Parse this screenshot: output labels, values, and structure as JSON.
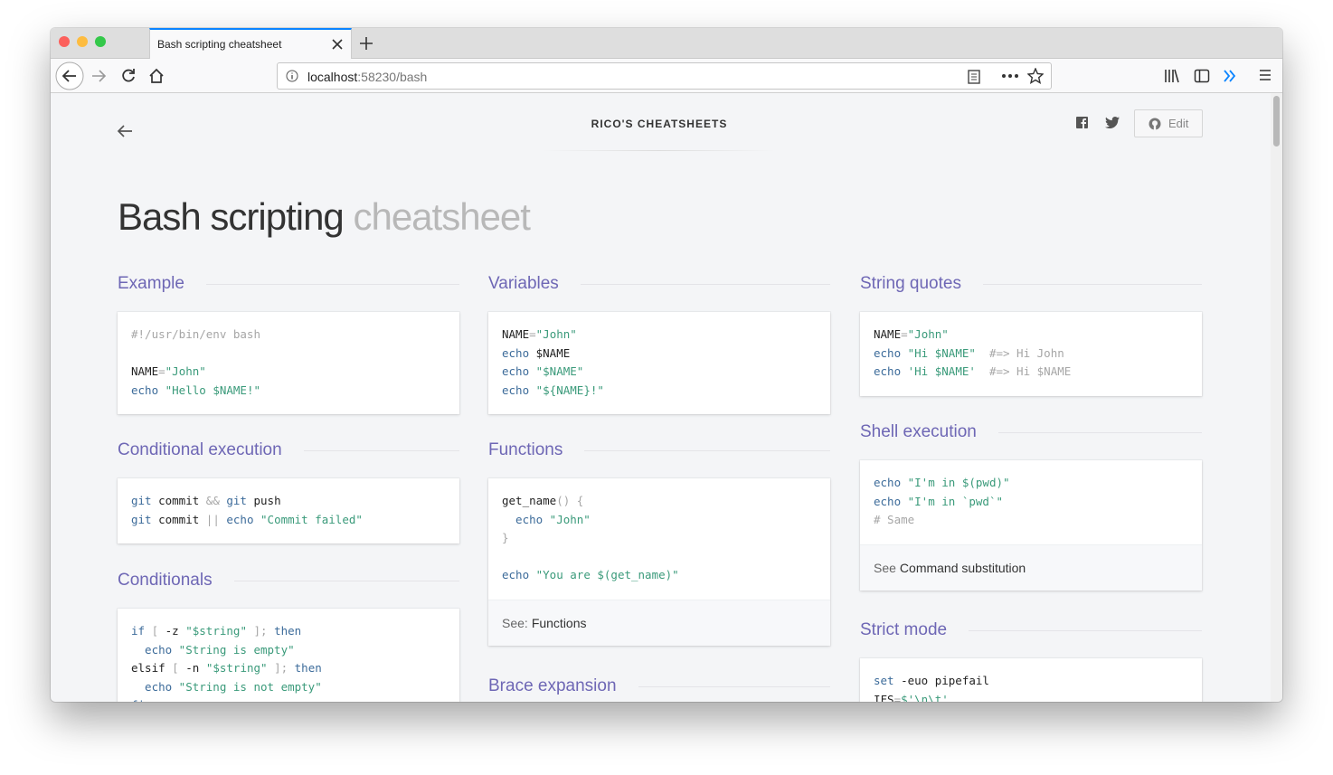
{
  "browser": {
    "tab_title": "Bash scripting cheatsheet",
    "url_host": "localhost",
    "url_path": ":58230/bash"
  },
  "header": {
    "brand": "RICO'S CHEATSHEETS",
    "edit": "Edit"
  },
  "title": {
    "main": "Bash scripting",
    "sub": "cheatsheet"
  },
  "sections": [
    {
      "heading": "Example",
      "code": [
        [
          "#!/usr/bin/env bash"
        ],
        [],
        [
          "NAME",
          "=",
          "\"John\""
        ],
        [
          "echo",
          " \"Hello $NAME!\""
        ]
      ]
    },
    {
      "heading": "Conditional execution",
      "code": [
        [
          "git",
          " commit ",
          "&&",
          " git",
          " push"
        ],
        [
          "git",
          " commit ",
          "||",
          " echo",
          " \"Commit failed\""
        ]
      ]
    },
    {
      "heading": "Conditionals",
      "code": [
        [
          "if",
          " [",
          " -z ",
          "\"$string\"",
          " ];",
          " then"
        ],
        [
          "  echo",
          " \"String is empty\""
        ],
        [
          "elsif",
          " [",
          " -n ",
          "\"$string\"",
          " ];",
          " then"
        ],
        [
          "  echo",
          " \"String is not empty\""
        ],
        [
          "fi"
        ]
      ]
    },
    {
      "heading": "Variables",
      "code": [
        [
          "NAME",
          "=",
          "\"John\""
        ],
        [
          "echo",
          " $NAME"
        ],
        [
          "echo",
          " \"$NAME\""
        ],
        [
          "echo",
          " \"${NAME}!\""
        ]
      ]
    },
    {
      "heading": "Functions",
      "code": [
        [
          "get_name",
          "()",
          " {"
        ],
        [
          "  echo",
          " \"John\""
        ],
        [
          "}"
        ],
        [],
        [
          "echo",
          " \"You are $(get_name)\""
        ]
      ],
      "footer": {
        "prefix": "See:",
        "link": "Functions"
      }
    },
    {
      "heading": "Brace expansion"
    },
    {
      "heading": "String quotes",
      "code": [
        [
          "NAME",
          "=",
          "\"John\""
        ],
        [
          "echo",
          " \"Hi $NAME\"",
          "  #=> Hi John"
        ],
        [
          "echo",
          " 'Hi $NAME'",
          "  #=> Hi $NAME"
        ]
      ]
    },
    {
      "heading": "Shell execution",
      "code": [
        [
          "echo",
          " \"I'm in $(pwd)\""
        ],
        [
          "echo",
          " \"I'm in `pwd`\""
        ],
        [
          "# Same"
        ]
      ],
      "footer": {
        "prefix": "See",
        "link": "Command substitution"
      }
    },
    {
      "heading": "Strict mode",
      "code": [
        [
          "set",
          " -euo pipefail"
        ],
        [
          "IFS",
          "=",
          "$'\\n\\t'"
        ]
      ]
    }
  ]
}
